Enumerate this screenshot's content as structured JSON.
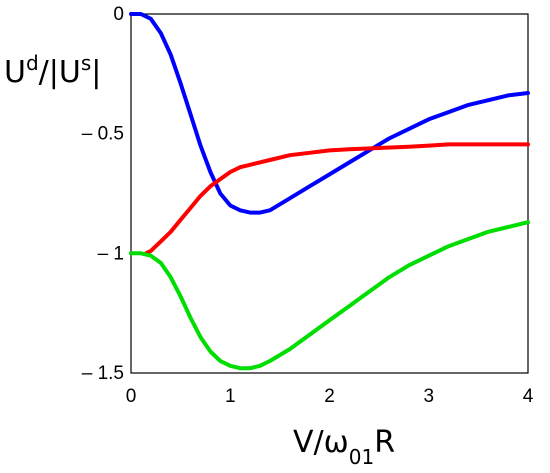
{
  "chart_data": {
    "type": "line",
    "title": "",
    "ylabel": {
      "main": "U",
      "sup1": "d",
      "mid": "/|U",
      "sup2": "s",
      "end": "|"
    },
    "xlabel": {
      "main": "V/ω",
      "sub": "01",
      "end": "R"
    },
    "xlim": [
      0,
      4
    ],
    "ylim": [
      -1.5,
      0
    ],
    "xticks": [
      {
        "value": 0,
        "label": "0"
      },
      {
        "value": 1,
        "label": "1"
      },
      {
        "value": 2,
        "label": "2"
      },
      {
        "value": 3,
        "label": "3"
      },
      {
        "value": 4,
        "label": "4"
      }
    ],
    "yticks": [
      {
        "value": 0,
        "label": "0"
      },
      {
        "value": -0.5,
        "label": "– 0.5"
      },
      {
        "value": -1,
        "label": "– 1"
      },
      {
        "value": -1.5,
        "label": "– 1.5"
      }
    ],
    "grid": false,
    "series": [
      {
        "color": "#0000ff",
        "x": [
          0,
          0.1,
          0.2,
          0.3,
          0.4,
          0.5,
          0.6,
          0.7,
          0.8,
          0.9,
          1.0,
          1.1,
          1.2,
          1.3,
          1.4,
          1.6,
          1.8,
          2.0,
          2.2,
          2.4,
          2.6,
          2.8,
          3.0,
          3.2,
          3.4,
          3.6,
          3.8,
          4.0
        ],
        "y": [
          0,
          0.0,
          -0.02,
          -0.08,
          -0.17,
          -0.29,
          -0.42,
          -0.55,
          -0.66,
          -0.75,
          -0.8,
          -0.82,
          -0.83,
          -0.83,
          -0.82,
          -0.77,
          -0.72,
          -0.67,
          -0.62,
          -0.57,
          -0.52,
          -0.48,
          -0.44,
          -0.41,
          -0.38,
          -0.36,
          -0.34,
          -0.33
        ]
      },
      {
        "color": "#ff0000",
        "x": [
          0.15,
          0.2,
          0.3,
          0.4,
          0.5,
          0.6,
          0.7,
          0.8,
          0.9,
          1.0,
          1.1,
          1.2,
          1.4,
          1.6,
          1.8,
          2.0,
          2.2,
          2.5,
          2.8,
          3.0,
          3.2,
          3.5,
          3.8,
          4.0
        ],
        "y": [
          -1.0,
          -0.99,
          -0.95,
          -0.91,
          -0.86,
          -0.81,
          -0.76,
          -0.72,
          -0.69,
          -0.66,
          -0.64,
          -0.63,
          -0.61,
          -0.59,
          -0.58,
          -0.57,
          -0.565,
          -0.56,
          -0.555,
          -0.55,
          -0.545,
          -0.545,
          -0.545,
          -0.545
        ]
      },
      {
        "color": "#00dd00",
        "x": [
          0,
          0.1,
          0.2,
          0.3,
          0.4,
          0.5,
          0.6,
          0.7,
          0.8,
          0.9,
          1.0,
          1.1,
          1.2,
          1.3,
          1.4,
          1.6,
          1.8,
          2.0,
          2.2,
          2.4,
          2.6,
          2.8,
          3.0,
          3.2,
          3.4,
          3.6,
          3.8,
          4.0
        ],
        "y": [
          -1.0,
          -1.0,
          -1.01,
          -1.04,
          -1.1,
          -1.18,
          -1.27,
          -1.35,
          -1.41,
          -1.45,
          -1.47,
          -1.48,
          -1.48,
          -1.47,
          -1.45,
          -1.4,
          -1.34,
          -1.28,
          -1.22,
          -1.16,
          -1.1,
          -1.05,
          -1.01,
          -0.97,
          -0.94,
          -0.91,
          -0.89,
          -0.87
        ]
      }
    ]
  }
}
